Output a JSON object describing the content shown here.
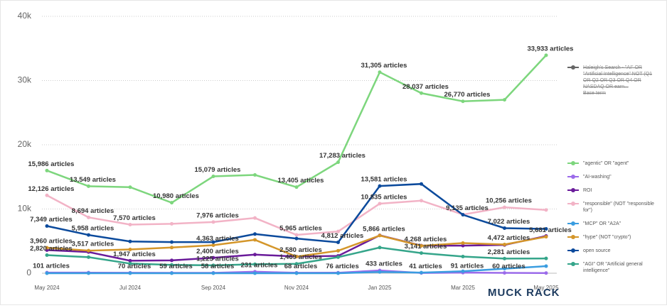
{
  "chart_data": {
    "type": "line",
    "categories": [
      "May 2024",
      null,
      "Jul 2024",
      null,
      "Sep 2024",
      null,
      "Nov 2024",
      null,
      "Jan 2025",
      null,
      "Mar 2025",
      null,
      "May 2025"
    ],
    "ylim": [
      0,
      40000
    ],
    "yticks": [
      0,
      {
        "value": 10000,
        "label": "10k"
      },
      {
        "value": 20000,
        "label": "20k"
      },
      {
        "value": 30000,
        "label": "30k"
      },
      {
        "value": 40000,
        "label": "40k"
      }
    ],
    "grid": true,
    "legend_extra": {
      "name": "Haleigh's Search - \"AI\" OR \"Artificial Intelligence\" NOT (Q1 OR Q2 OR Q3 OR Q4 OR NASDAQ OR earn...",
      "note": "Base term",
      "color": "#666666"
    },
    "series": [
      {
        "name": "\"agentic\" OR \"agent\"",
        "color": "#7dd67d",
        "values": [
          15986,
          13549,
          13400,
          10980,
          15079,
          15300,
          13405,
          17283,
          31305,
          28037,
          26770,
          27000,
          33933
        ],
        "value_labels": [
          "15,986 articles",
          "13,549 articles",
          null,
          "10,980 articles",
          "15,079 articles",
          null,
          "13,405 articles",
          "17,283 articles",
          "31,305 articles",
          "28,037 articles",
          "26,770 articles",
          null,
          "33,933 articles"
        ]
      },
      {
        "name": "\"AI-washing\"",
        "color": "#9b6bea",
        "values": [
          101,
          90,
          70,
          59,
          58,
          231,
          68,
          76,
          433,
          41,
          91,
          60,
          30
        ],
        "value_labels": [
          "101 articles",
          null,
          "70 articles",
          "59 articles",
          "58 articles",
          "231 articles",
          "68 articles",
          "76 articles",
          "433 articles",
          "41 articles",
          "91 articles",
          "60 articles",
          null
        ]
      },
      {
        "name": "ROI",
        "color": "#6a1b9a",
        "values": [
          3600,
          3300,
          1947,
          2000,
          2400,
          2900,
          2600,
          2700,
          5900,
          4300,
          4300,
          4400,
          5800
        ],
        "value_labels": [
          null,
          null,
          "1,947 articles",
          null,
          "2,400 articles",
          null,
          null,
          null,
          null,
          null,
          null,
          null,
          null
        ]
      },
      {
        "name": "\"responsible\" (NOT \"responsible for\")",
        "color": "#f2b3c6",
        "values": [
          12126,
          8694,
          7570,
          7700,
          7976,
          8600,
          5965,
          6500,
          10835,
          11300,
          9135,
          10256,
          9850
        ],
        "value_labels": [
          "12,126 articles",
          "8,694 articles",
          "7,570 articles",
          null,
          "7,976 articles",
          null,
          "5,965 articles",
          null,
          "10,835 articles",
          null,
          "9,135 articles",
          "10,256 articles",
          null
        ]
      },
      {
        "name": "\"MCP\" OR \"A2A\"",
        "color": "#3a9de0",
        "values": [
          0,
          0,
          0,
          0,
          0,
          0,
          0,
          0,
          200,
          100,
          300,
          700,
          1100
        ]
      },
      {
        "name": "\"hype\" (NOT \"crypto\")",
        "color": "#d4962a",
        "values": [
          3960,
          3517,
          3700,
          4000,
          4363,
          5200,
          2580,
          3500,
          5866,
          4268,
          4700,
          4472,
          5681
        ],
        "value_labels": [
          "3,960 articles",
          "3,517 articles",
          null,
          null,
          "4,363 articles",
          null,
          "2,580 articles",
          null,
          "5,866 articles",
          "4,268 articles",
          null,
          "4,472 articles",
          "5,681 articles"
        ]
      },
      {
        "name": "open source",
        "color": "#0b4a9c",
        "values": [
          7349,
          5958,
          4950,
          4850,
          4850,
          6100,
          5400,
          4812,
          13581,
          13900,
          9100,
          7022,
          6900
        ],
        "value_labels": [
          "7,349 articles",
          "5,958 articles",
          null,
          null,
          null,
          null,
          null,
          "4,812 articles",
          "13,581 articles",
          null,
          null,
          "7,022 articles",
          null
        ]
      },
      {
        "name": "\"AGI\" OR \"Artificial general intelligence\"",
        "color": "#35a58a",
        "values": [
          2820,
          2500,
          1500,
          1300,
          1225,
          1400,
          1469,
          2500,
          4000,
          3141,
          2600,
          2281,
          2300
        ],
        "value_labels": [
          "2,820 articles",
          null,
          null,
          null,
          "1,225 articles",
          null,
          "1,469 articles",
          null,
          null,
          "3,141 articles",
          null,
          "2,281 articles",
          null
        ]
      }
    ]
  },
  "logo": "MUCK RACK"
}
